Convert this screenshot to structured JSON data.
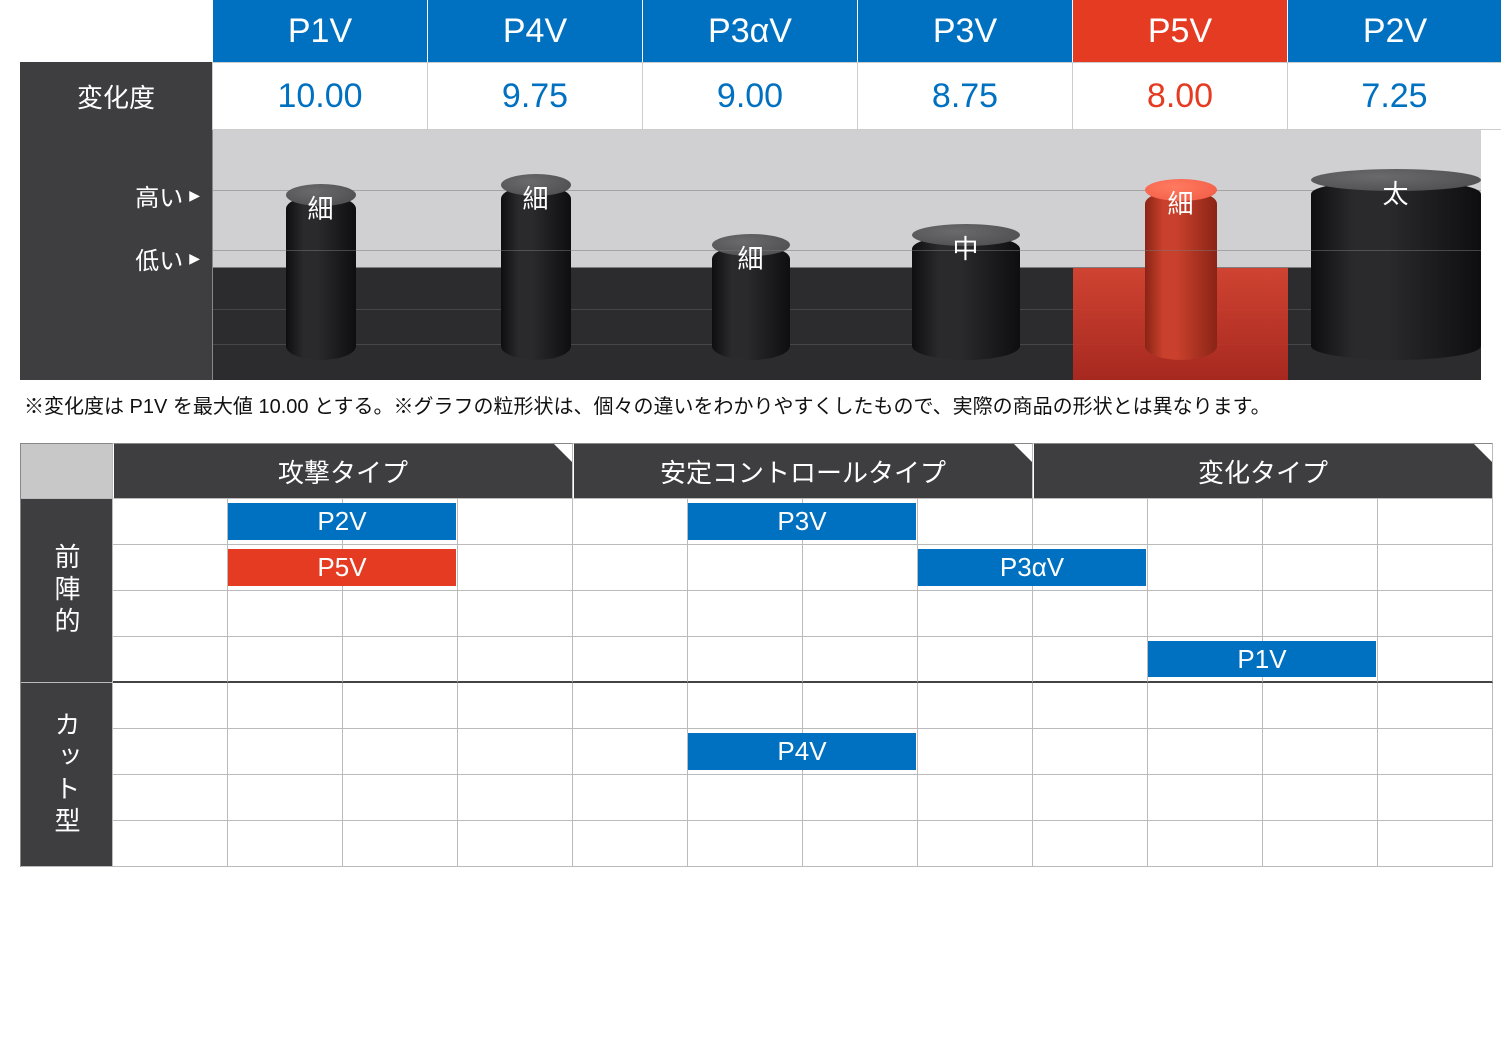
{
  "colors": {
    "blue": "#0071c1",
    "red": "#e53b22",
    "dark": "#3e3e40",
    "header_dark": "#3e3e40",
    "cylinder_dark_top": "#4a4a4c",
    "cylinder_dark_side": "#1c1c1e",
    "cylinder_red_top": "#f05a44",
    "cylinder_red_side": "#b82e1c",
    "chart_floor": "#2c2c2e",
    "chart_bg_upper": "#d0d0d2"
  },
  "top_table": {
    "row1_label": "変化度",
    "side_high": "高い",
    "side_low": "低い",
    "columns": [
      {
        "name": "P1V",
        "value": "10.00",
        "header_bg": "#0071c1",
        "value_color": "#0071c1",
        "cyl_label": "細",
        "cyl_height": 165,
        "cyl_width": 70,
        "cyl_color": "dark",
        "highlight": false
      },
      {
        "name": "P4V",
        "value": "9.75",
        "header_bg": "#0071c1",
        "value_color": "#0071c1",
        "cyl_label": "細",
        "cyl_height": 175,
        "cyl_width": 70,
        "cyl_color": "dark",
        "highlight": false
      },
      {
        "name": "P3αV",
        "value": "9.00",
        "header_bg": "#0071c1",
        "value_color": "#0071c1",
        "cyl_label": "細",
        "cyl_height": 115,
        "cyl_width": 78,
        "cyl_color": "dark",
        "highlight": false
      },
      {
        "name": "P3V",
        "value": "8.75",
        "header_bg": "#0071c1",
        "value_color": "#0071c1",
        "cyl_label": "中",
        "cyl_height": 125,
        "cyl_width": 108,
        "cyl_color": "dark",
        "highlight": false
      },
      {
        "name": "P5V",
        "value": "8.00",
        "header_bg": "#e53b22",
        "value_color": "#e53b22",
        "cyl_label": "細",
        "cyl_height": 170,
        "cyl_width": 72,
        "cyl_color": "red",
        "highlight": true
      },
      {
        "name": "P2V",
        "value": "7.25",
        "header_bg": "#0071c1",
        "value_color": "#0071c1",
        "cyl_label": "太",
        "cyl_height": 180,
        "cyl_width": 170,
        "cyl_color": "dark",
        "highlight": false
      }
    ]
  },
  "note": "※変化度は P1V を最大値 10.00 とする。※グラフの粒形状は、個々の違いをわかりやすくしたもので、実際の商品の形状とは異なります。",
  "bottom_table": {
    "type_headers": [
      "攻撃タイプ",
      "安定コントロールタイプ",
      "変化タイプ"
    ],
    "side_headers": [
      "前陣的",
      "カット型"
    ],
    "rows_per_section": 4,
    "cols_per_type": 4,
    "bars": [
      {
        "label": "P2V",
        "row": 1,
        "col_start": 2,
        "col_span": 2,
        "color": "#0071c1"
      },
      {
        "label": "P5V",
        "row": 2,
        "col_start": 2,
        "col_span": 2,
        "color": "#e53b22"
      },
      {
        "label": "P3V",
        "row": 1,
        "col_start": 6,
        "col_span": 2,
        "color": "#0071c1"
      },
      {
        "label": "P3αV",
        "row": 2,
        "col_start": 8,
        "col_span": 2,
        "color": "#0071c1"
      },
      {
        "label": "P1V",
        "row": 4,
        "col_start": 10,
        "col_span": 2,
        "color": "#0071c1"
      },
      {
        "label": "P4V",
        "row": 6,
        "col_start": 6,
        "col_span": 2,
        "color": "#0071c1"
      }
    ]
  }
}
